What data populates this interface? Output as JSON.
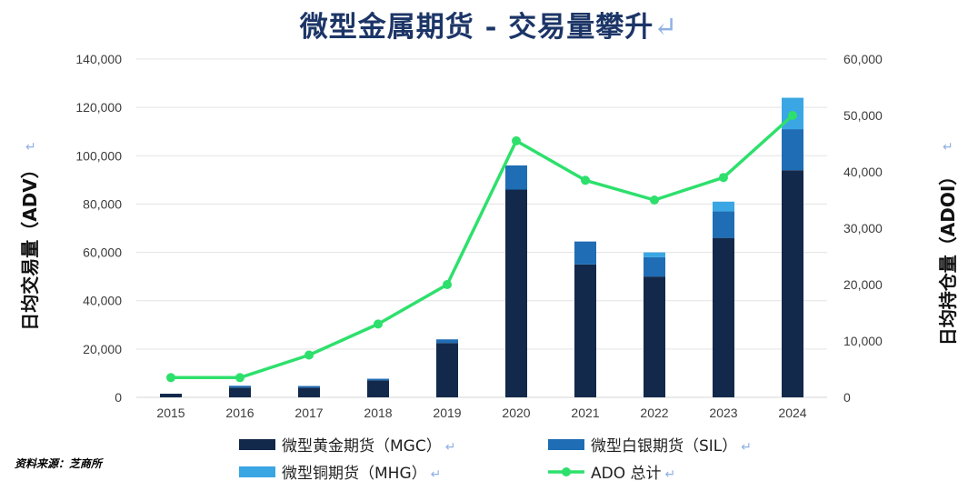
{
  "chart_data": {
    "type": "bar",
    "title": "微型金属期货 - 交易量攀升",
    "categories": [
      "2015",
      "2016",
      "2017",
      "2018",
      "2019",
      "2020",
      "2021",
      "2022",
      "2023",
      "2024"
    ],
    "stacked": true,
    "series": [
      {
        "name": "微型黄金期货（MGC）",
        "color": "#13294b",
        "axis": "left",
        "values": [
          1500,
          4000,
          4000,
          7000,
          22500,
          86000,
          55000,
          50000,
          66000,
          94000
        ]
      },
      {
        "name": "微型白银期货（SIL）",
        "color": "#1f6db5",
        "axis": "left",
        "values": [
          0,
          800,
          700,
          700,
          1500,
          10000,
          9500,
          8000,
          11000,
          17000
        ]
      },
      {
        "name": "微型铜期货（MHG）",
        "color": "#3aa6e3",
        "axis": "left",
        "values": [
          0,
          0,
          0,
          0,
          0,
          0,
          0,
          2000,
          4000,
          13000
        ]
      }
    ],
    "line_series": {
      "name": "ADO 总计",
      "color": "#2de06c",
      "axis": "right",
      "values": [
        3500,
        3500,
        7500,
        13000,
        20000,
        45500,
        38500,
        35000,
        39000,
        50000
      ]
    },
    "ylabel_left": "日均交易量（ADV）",
    "ylabel_right": "日均持仓量（ADOI）",
    "ylim_left": [
      0,
      140000
    ],
    "ylim_right": [
      0,
      60000
    ],
    "yticks_left": [
      "0",
      "20,000",
      "40,000",
      "60,000",
      "80,000",
      "100,000",
      "120,000",
      "140,000"
    ],
    "yticks_right": [
      "0",
      "10,000",
      "20,000",
      "30,000",
      "40,000",
      "50,000",
      "60,000"
    ],
    "grid": true,
    "legend_position": "bottom",
    "source": "资料来源：芝商所"
  },
  "return_mark": "↵"
}
